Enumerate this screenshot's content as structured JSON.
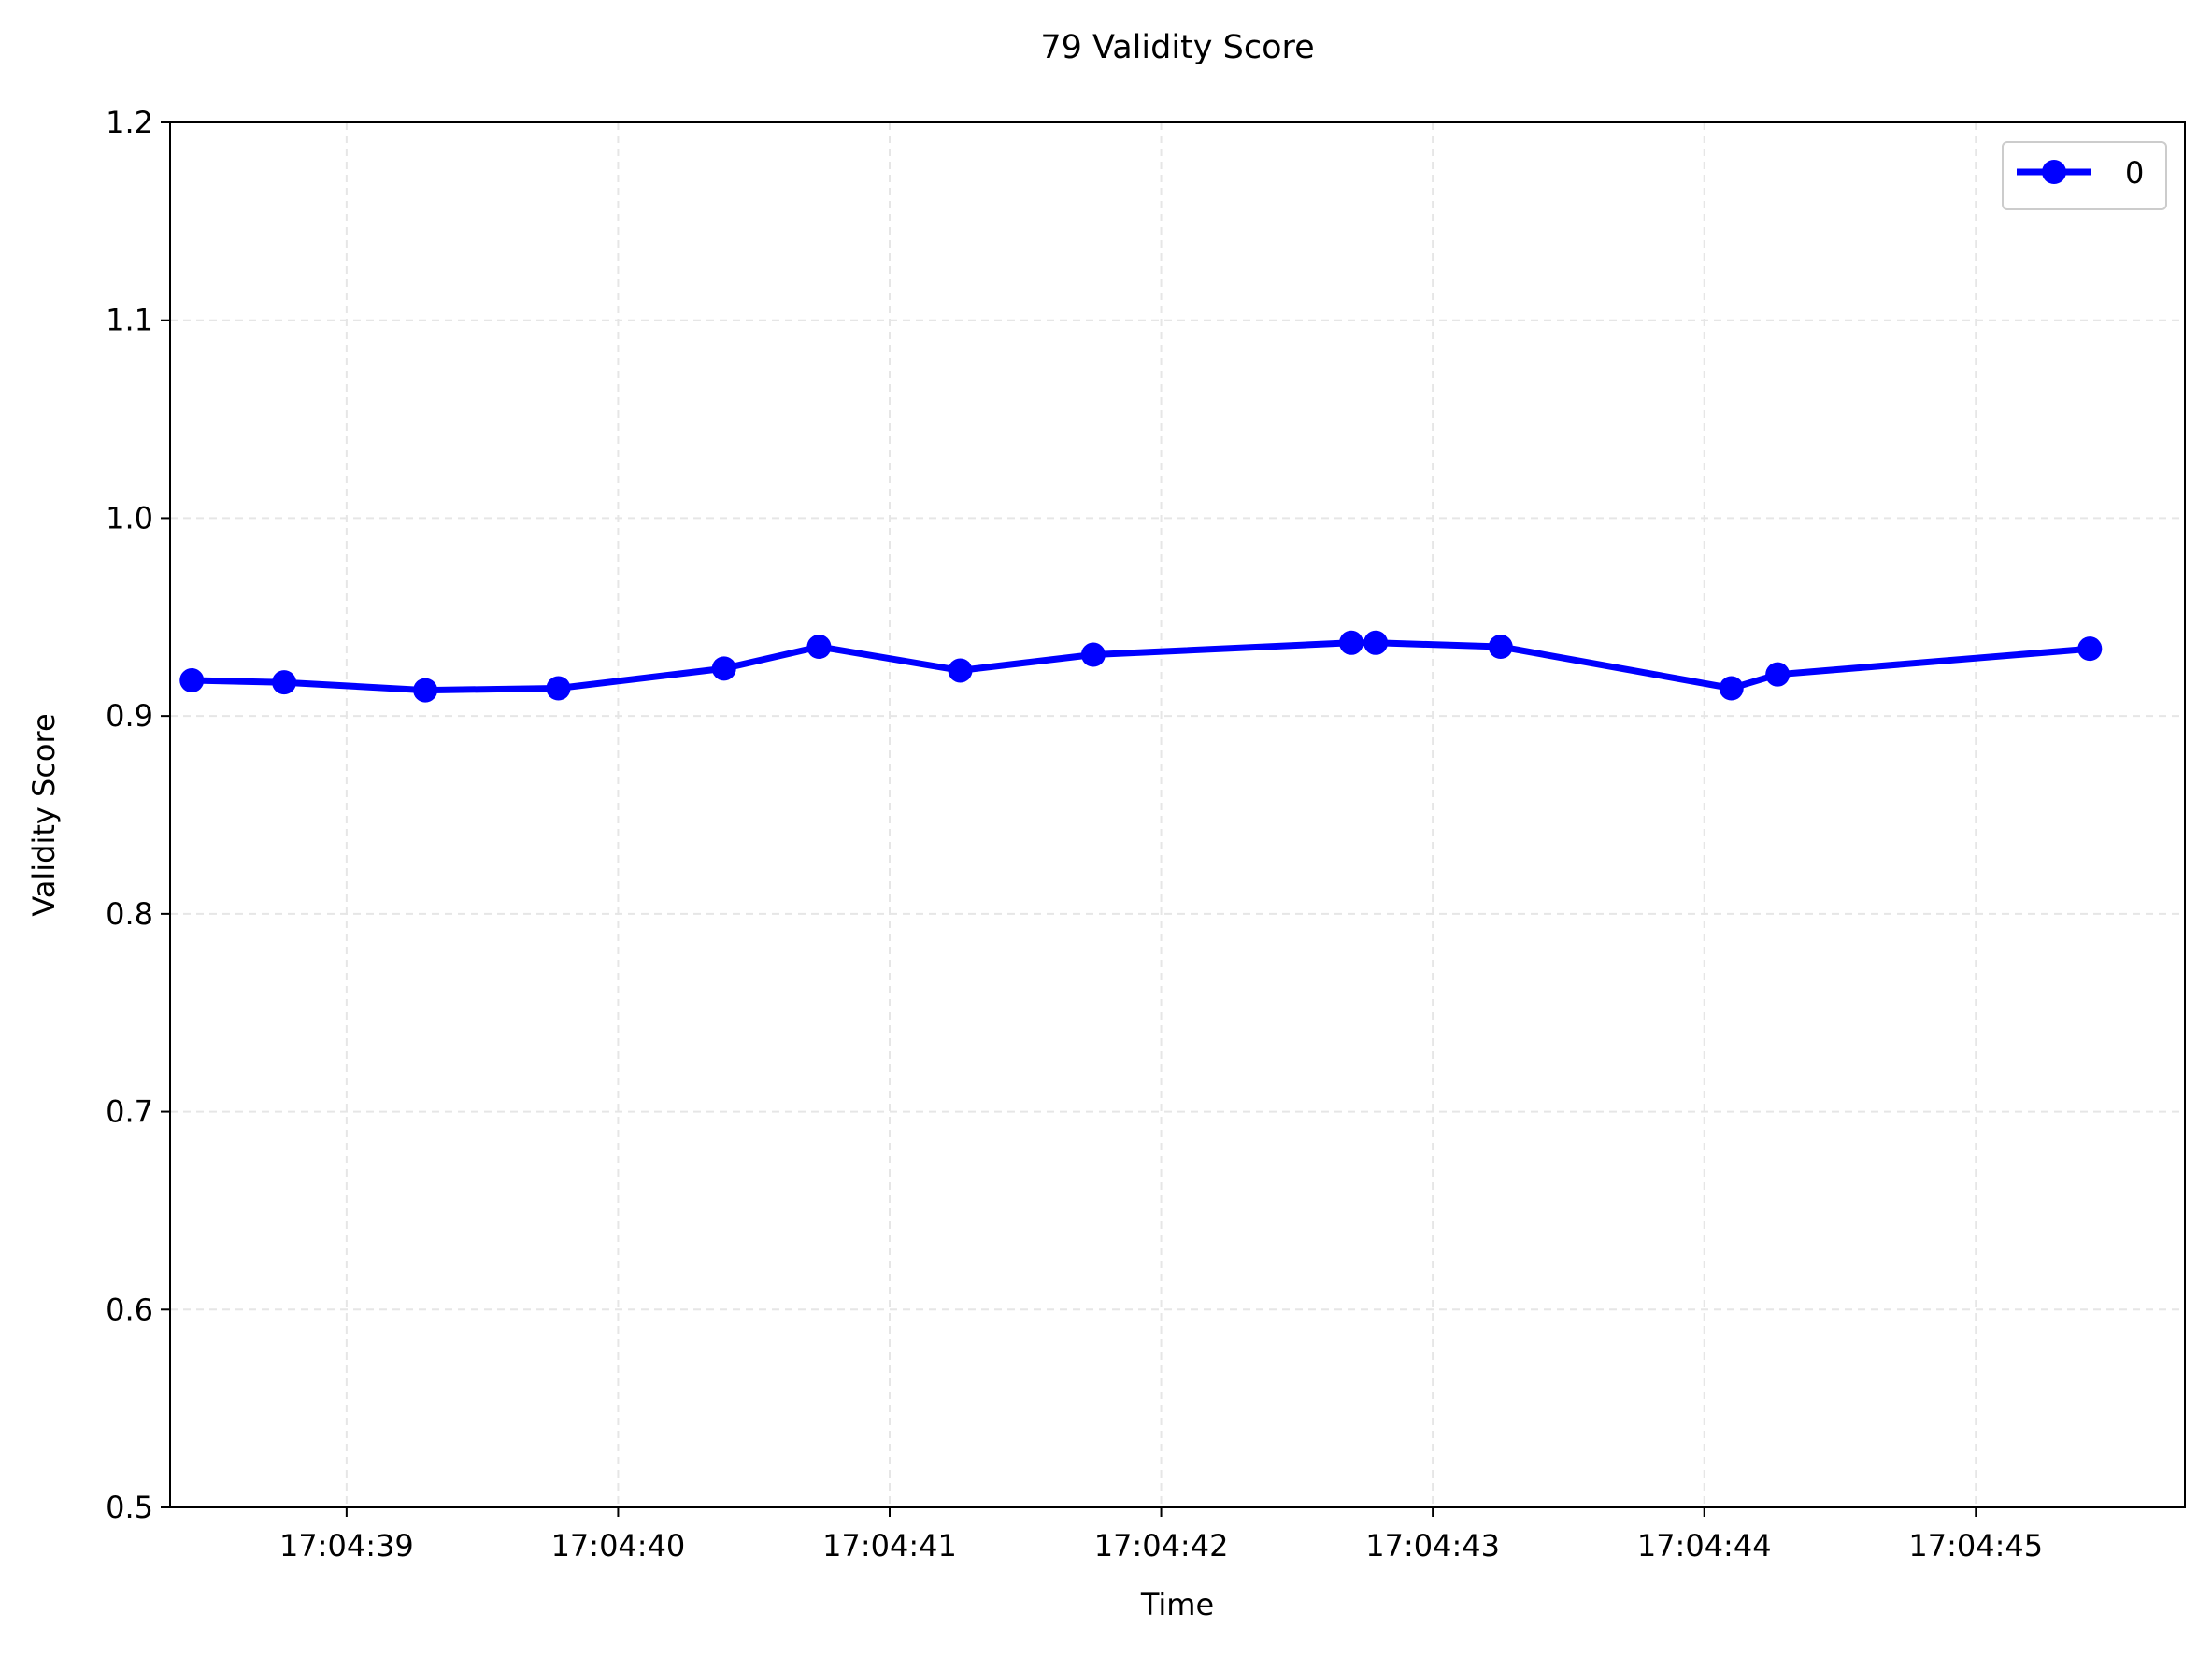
{
  "chart_data": {
    "type": "line",
    "title": "79 Validity Score",
    "xlabel": "Time",
    "ylabel": "Validity Score",
    "x_ticks": [
      "17:04:39",
      "17:04:40",
      "17:04:41",
      "17:04:42",
      "17:04:43",
      "17:04:44",
      "17:04:45"
    ],
    "x_tick_seconds": [
      39,
      40,
      41,
      42,
      43,
      44,
      45
    ],
    "xlim_seconds": [
      38.35,
      45.77
    ],
    "y_ticks": [
      "0.5",
      "0.6",
      "0.7",
      "0.8",
      "0.9",
      "1.0",
      "1.1",
      "1.2"
    ],
    "ylim": [
      0.5,
      1.2
    ],
    "grid": true,
    "legend_position": "top-right",
    "colors": {
      "series": "#0000ff",
      "grid": "#e6e6e6",
      "axes": "#000000"
    },
    "series": [
      {
        "name": "0",
        "x_seconds": [
          38.43,
          38.77,
          39.29,
          39.78,
          40.39,
          40.74,
          41.26,
          41.75,
          42.7,
          42.79,
          43.25,
          44.1,
          44.27,
          45.42
        ],
        "values": [
          0.918,
          0.917,
          0.913,
          0.914,
          0.924,
          0.935,
          0.923,
          0.931,
          0.937,
          0.937,
          0.935,
          0.914,
          0.921,
          0.934
        ]
      }
    ]
  }
}
